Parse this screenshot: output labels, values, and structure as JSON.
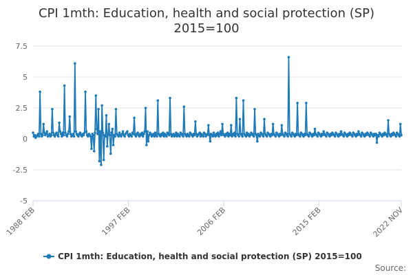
{
  "chart_data": {
    "type": "line",
    "title": "CPI 1mth: Education, health and social protection (SP)",
    "subtitle": "2015=100",
    "xlabel": "",
    "ylabel": "",
    "ylim": [
      -5,
      7.5
    ],
    "yticks": [
      "7.5",
      "5",
      "2.5",
      "0",
      "-2.5",
      "-5"
    ],
    "ytick_values": [
      7.5,
      5,
      2.5,
      0,
      -2.5,
      -5
    ],
    "xticks": [
      "1988 FEB",
      "1997 FEB",
      "2006 FEB",
      "2015 FEB",
      "2022 NOV"
    ],
    "xtick_months": [
      0,
      108,
      216,
      324,
      417
    ],
    "x_start": "1988 FEB",
    "x_end": "2022 NOV",
    "grid": "horizontal",
    "legend_position": "bottom",
    "series": [
      {
        "name": "CPI 1mth: Education, health and social protection (SP) 2015=100",
        "color": "#1f7ab8",
        "values": [
          0.5,
          0.2,
          0.3,
          0.1,
          0.2,
          0.3,
          0.4,
          0.2,
          3.8,
          0.4,
          0.2,
          0.3,
          1.2,
          0.5,
          0.3,
          0.4,
          0.6,
          0.2,
          0.3,
          0.4,
          0.2,
          0.3,
          2.4,
          0.5,
          0.3,
          0.2,
          0.4,
          0.5,
          0.3,
          0.2,
          1.3,
          0.6,
          0.4,
          0.2,
          0.5,
          0.3,
          4.3,
          0.5,
          0.3,
          0.2,
          0.4,
          0.6,
          1.8,
          0.4,
          0.2,
          0.3,
          0.4,
          0.2,
          6.1,
          0.6,
          0.4,
          0.3,
          0.2,
          0.4,
          0.5,
          0.3,
          0.2,
          0.4,
          0.3,
          0.5,
          3.8,
          0.6,
          0.3,
          0.2,
          0.4,
          0.3,
          0.2,
          -0.8,
          0.4,
          0.3,
          -1.0,
          0.5,
          3.5,
          0.8,
          0.4,
          2.4,
          -1.8,
          0.6,
          -2.1,
          2.7,
          0.5,
          -1.7,
          0.3,
          0.2,
          1.9,
          -0.6,
          0.4,
          1.2,
          0.3,
          -1.2,
          0.5,
          0.8,
          -0.5,
          0.3,
          0.2,
          2.4,
          0.4,
          0.3,
          0.2,
          0.5,
          0.3,
          0.2,
          0.4,
          0.6,
          0.3,
          0.2,
          0.4,
          0.5,
          0.6,
          0.3,
          0.2,
          0.4,
          0.3,
          0.2,
          0.5,
          0.4,
          1.7,
          0.3,
          0.2,
          0.4,
          0.5,
          0.3,
          0.2,
          0.4,
          0.3,
          0.5,
          0.2,
          0.4,
          0.6,
          2.5,
          -0.5,
          0.6,
          -0.2,
          0.3,
          0.5,
          0.4,
          0.2,
          0.3,
          0.4,
          0.2,
          0.5,
          0.3,
          0.2,
          3.1,
          0.4,
          0.3,
          0.2,
          0.4,
          0.3,
          0.5,
          0.2,
          0.4,
          0.3,
          0.2,
          0.5,
          0.4,
          0.3,
          3.3,
          0.4,
          0.2,
          0.3,
          0.4,
          0.2,
          0.3,
          0.5,
          0.2,
          0.4,
          0.3,
          0.2,
          0.5,
          0.4,
          0.3,
          0.2,
          2.6,
          0.4,
          0.3,
          0.2,
          0.4,
          0.3,
          0.2,
          0.5,
          0.4,
          0.3,
          0.2,
          0.4,
          0.3,
          1.4,
          0.4,
          0.2,
          0.3,
          0.4,
          0.5,
          0.2,
          0.4,
          0.3,
          0.2,
          0.5,
          0.4,
          0.2,
          0.3,
          0.4,
          1.1,
          0.3,
          -0.2,
          0.4,
          0.3,
          0.2,
          0.5,
          0.3,
          0.2,
          0.4,
          0.3,
          0.5,
          0.2,
          0.4,
          0.6,
          0.3,
          1.2,
          0.4,
          0.3,
          0.2,
          0.4,
          0.3,
          0.5,
          0.2,
          0.4,
          0.3,
          1.1,
          0.2,
          0.4,
          0.3,
          0.5,
          0.2,
          3.3,
          0.4,
          0.3,
          0.2,
          1.6,
          0.4,
          0.3,
          0.2,
          3.1,
          0.4,
          0.3,
          0.2,
          0.5,
          0.3,
          0.4,
          0.2,
          0.3,
          0.5,
          0.4,
          0.3,
          0.2,
          2.4,
          0.4,
          0.3,
          -0.2,
          0.4,
          0.3,
          0.2,
          0.5,
          0.4,
          0.3,
          0.2,
          1.6,
          0.4,
          0.3,
          0.2,
          0.5,
          0.4,
          0.3,
          0.2,
          0.4,
          0.3,
          1.2,
          0.4,
          0.3,
          0.2,
          0.5,
          0.4,
          0.3,
          0.2,
          0.4,
          0.3,
          1.1,
          0.4,
          0.3,
          0.2,
          0.5,
          0.4,
          0.3,
          0.2,
          6.6,
          0.4,
          0.3,
          0.2,
          0.5,
          0.4,
          0.3,
          0.2,
          0.4,
          0.3,
          2.9,
          0.4,
          0.3,
          0.2,
          0.5,
          0.4,
          0.3,
          0.2,
          0.4,
          0.3,
          2.9,
          0.4,
          0.3,
          0.2,
          0.5,
          0.4,
          0.3,
          0.2,
          0.4,
          0.3,
          0.8,
          0.4,
          0.3,
          0.2,
          0.5,
          0.4,
          0.3,
          0.2,
          0.4,
          0.3,
          0.6,
          0.4,
          0.3,
          0.2,
          0.5,
          0.4,
          0.3,
          0.2,
          0.4,
          0.3,
          0.5,
          0.4,
          0.3,
          0.2,
          0.5,
          0.4,
          0.3,
          0.2,
          0.4,
          0.3,
          0.6,
          0.4,
          0.3,
          0.2,
          0.5,
          0.4,
          0.3,
          0.2,
          0.4,
          0.3,
          0.5,
          0.4,
          0.3,
          0.2,
          0.5,
          0.4,
          0.3,
          0.2,
          0.4,
          0.3,
          0.6,
          0.4,
          0.3,
          0.2,
          0.5,
          0.4,
          0.3,
          0.2,
          0.4,
          0.3,
          0.5,
          0.4,
          0.3,
          0.2,
          0.5,
          0.4,
          0.3,
          0.2,
          0.4,
          0.3,
          0.4,
          -0.3,
          0.3,
          0.2,
          0.5,
          0.4,
          0.3,
          0.2,
          0.4,
          0.3,
          0.5,
          0.4,
          0.3,
          0.2,
          1.5,
          0.4,
          0.3,
          0.2,
          0.4,
          0.3,
          0.5,
          0.4,
          0.3,
          0.2,
          0.5,
          0.4,
          0.3,
          0.2,
          1.2,
          0.3
        ]
      }
    ]
  },
  "legend": {
    "label": "CPI 1mth: Education, health and social protection (SP) 2015=100"
  },
  "credits": {
    "text": "Source: "
  }
}
